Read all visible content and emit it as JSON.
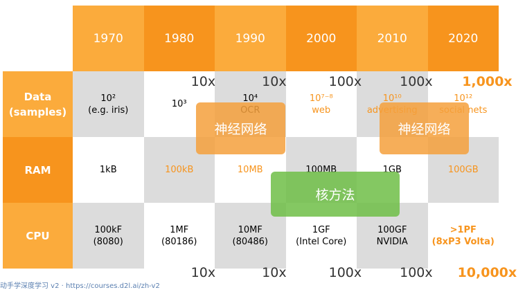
{
  "header": {
    "years": [
      "1970",
      "1980",
      "1990",
      "2000",
      "2010",
      "2020"
    ]
  },
  "rows": [
    {
      "label": [
        "Data",
        "(samples)"
      ],
      "cells": [
        {
          "lines": [
            "10²",
            "(e.g. iris)"
          ],
          "color": "#000000"
        },
        {
          "lines": [
            "10³"
          ],
          "color": "#000000"
        },
        {
          "lines": [
            "10⁴",
            "OCR"
          ],
          "color": "#000000"
        },
        {
          "lines": [
            "10⁷⁻⁸",
            "web"
          ],
          "color": "#f7941d"
        },
        {
          "lines": [
            "10¹⁰",
            "advertising"
          ],
          "color": "#f7941d"
        },
        {
          "lines": [
            "10¹²",
            "social nets"
          ],
          "color": "#f7941d"
        }
      ]
    },
    {
      "label": [
        "RAM"
      ],
      "cells": [
        {
          "lines": [
            "1kB"
          ],
          "color": "#000000"
        },
        {
          "lines": [
            "100kB"
          ],
          "color": "#f7941d"
        },
        {
          "lines": [
            "10MB"
          ],
          "color": "#f7941d"
        },
        {
          "lines": [
            "100MB"
          ],
          "color": "#000000"
        },
        {
          "lines": [
            "1GB"
          ],
          "color": "#000000"
        },
        {
          "lines": [
            "100GB"
          ],
          "color": "#f7941d"
        }
      ]
    },
    {
      "label": [
        "CPU"
      ],
      "cells": [
        {
          "lines": [
            "100kF",
            "(8080)"
          ],
          "color": "#000000"
        },
        {
          "lines": [
            "1MF",
            "(80186)"
          ],
          "color": "#000000"
        },
        {
          "lines": [
            "10MF",
            "(80486)"
          ],
          "color": "#000000"
        },
        {
          "lines": [
            "1GF",
            "(Intel Core)"
          ],
          "color": "#000000"
        },
        {
          "lines": [
            "100GF",
            "NVIDIA"
          ],
          "color": "#000000"
        },
        {
          "lines": [
            ">1PF",
            "(8xP3 Volta)"
          ],
          "color": "#f7941d",
          "bold": true
        }
      ]
    }
  ],
  "top_multipliers": [
    "10x",
    "10x",
    "100x",
    "100x",
    "1,000x"
  ],
  "bottom_multipliers": [
    "10x",
    "10x",
    "100x",
    "100x",
    "10,000x"
  ],
  "overlays": [
    {
      "label": "神经网络",
      "color": "rgba(245,160,60,0.85)"
    },
    {
      "label": "神经网络",
      "color": "rgba(245,160,60,0.85)"
    },
    {
      "label": "核方法",
      "color": "rgba(110,190,70,0.85)"
    }
  ],
  "footer": "动手学深度学习 v2 · https://courses.d2l.ai/zh-v2"
}
